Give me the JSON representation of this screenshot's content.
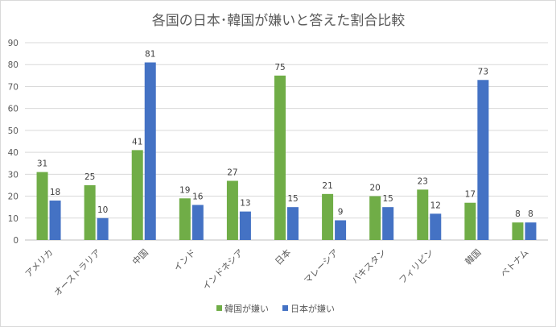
{
  "chart_data": {
    "type": "bar",
    "title": "各国の日本･韓国が嫌いと答えた割合比較",
    "categories": [
      "アメリカ",
      "オーストラリア",
      "中国",
      "インド",
      "インドネシア",
      "日本",
      "マレーシア",
      "パキスタン",
      "フィリピン",
      "韓国",
      "ベトナム"
    ],
    "series": [
      {
        "name": "韓国が嫌い",
        "color": "#70ad47",
        "values": [
          31,
          25,
          41,
          19,
          27,
          75,
          21,
          20,
          23,
          17,
          8
        ]
      },
      {
        "name": "日本が嫌い",
        "color": "#4472c4",
        "values": [
          18,
          10,
          81,
          16,
          13,
          15,
          9,
          15,
          12,
          73,
          8
        ]
      }
    ],
    "ylim": [
      0,
      90
    ],
    "yticks": [
      0,
      10,
      20,
      30,
      40,
      50,
      60,
      70,
      80,
      90
    ],
    "grid": true,
    "legend_position": "bottom",
    "gridline_color": "#d9d9d9"
  }
}
